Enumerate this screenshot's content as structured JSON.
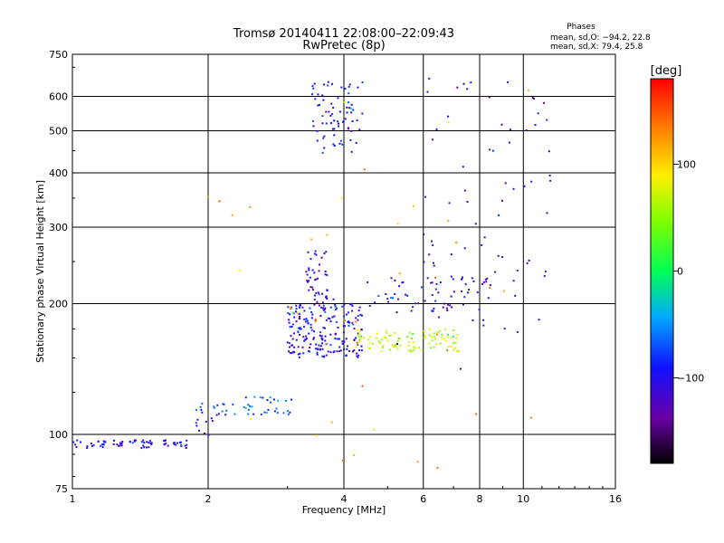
{
  "chart_data": {
    "type": "scatter",
    "title": "Tromsø 20140411 22:08:00–22:09:43",
    "subtitle": "RwPretec (8p)",
    "xlabel": "Frequency [MHz]",
    "ylabel": "Stationary phase Virtual Height [km]",
    "x_scale": "log",
    "y_scale": "log",
    "xlim": [
      1,
      16
    ],
    "ylim": [
      75,
      750
    ],
    "x_ticks": [
      1,
      2,
      4,
      8,
      16
    ],
    "x_tick_labels": [
      "1",
      "2",
      "4",
      "8",
      "16"
    ],
    "x_extra_labels": [
      {
        "x": 6,
        "label": "6"
      },
      {
        "x": 10,
        "label": "10"
      }
    ],
    "x_grid": [
      2,
      4,
      6,
      8,
      10
    ],
    "y_ticks": [
      75,
      100,
      200,
      300,
      400,
      500,
      600,
      750
    ],
    "y_tick_labels": [
      "75",
      "100",
      "200",
      "300",
      "400",
      "500",
      "600",
      "750"
    ],
    "y_grid": [
      100,
      200,
      300,
      400,
      500,
      600
    ],
    "grid": true,
    "info_box": {
      "title": "Phases",
      "line1": "mean, sd,O: −94.2, 22.8",
      "line2": "mean, sd,X:  79.4, 25.8"
    },
    "colorbar": {
      "label": "[deg]",
      "range": [
        -180,
        180
      ],
      "tick_values": [
        100,
        0,
        -100
      ],
      "tick_labels": [
        "100",
        "0",
        "−100"
      ]
    },
    "clusters": [
      {
        "name": "E-layer trace",
        "x_range": [
          1.0,
          1.8
        ],
        "y_range": [
          93,
          97
        ],
        "phase": -100,
        "count": 70
      },
      {
        "name": "lower F ramp",
        "x_range": [
          1.88,
          2.05
        ],
        "y_range": [
          98,
          118
        ],
        "phase": -90,
        "count": 14
      },
      {
        "name": "ramp 2.1-2.3 MHz",
        "x_range": [
          2.05,
          2.3
        ],
        "y_range": [
          110,
          118
        ],
        "phase": -70,
        "count": 12
      },
      {
        "name": "ramp 2.4-3.1 MHz",
        "x_range": [
          2.4,
          3.1
        ],
        "y_range": [
          111,
          122
        ],
        "phase": -60,
        "count": 30
      },
      {
        "name": "ordinary F main",
        "x_range": [
          3.0,
          4.4
        ],
        "y_range": [
          150,
          200
        ],
        "phase": -100,
        "count": 210
      },
      {
        "name": "ordinary F upper cusp",
        "x_range": [
          3.3,
          3.8
        ],
        "y_range": [
          200,
          265
        ],
        "phase": -110,
        "count": 45
      },
      {
        "name": "extraordinary F",
        "x_range": [
          4.2,
          7.4
        ],
        "y_range": [
          155,
          175
        ],
        "phase": 70,
        "count": 100
      },
      {
        "name": "F ridge 4.5-8.5 MHz",
        "x_range": [
          4.5,
          8.5
        ],
        "y_range": [
          190,
          230
        ],
        "phase": -100,
        "count": 60
      },
      {
        "name": "upper echoes",
        "x_range": [
          3.4,
          4.4
        ],
        "y_range": [
          440,
          650
        ],
        "phase": -100,
        "count": 75
      },
      {
        "name": "high-frequency scatter",
        "x_range": [
          6.0,
          11.5
        ],
        "y_range": [
          170,
          660
        ],
        "phase": -110,
        "count": 80
      },
      {
        "name": "isolated points",
        "x_range": [
          1.9,
          11.0
        ],
        "y_range": [
          78,
          420
        ],
        "phase": 120,
        "count": 30
      }
    ]
  }
}
